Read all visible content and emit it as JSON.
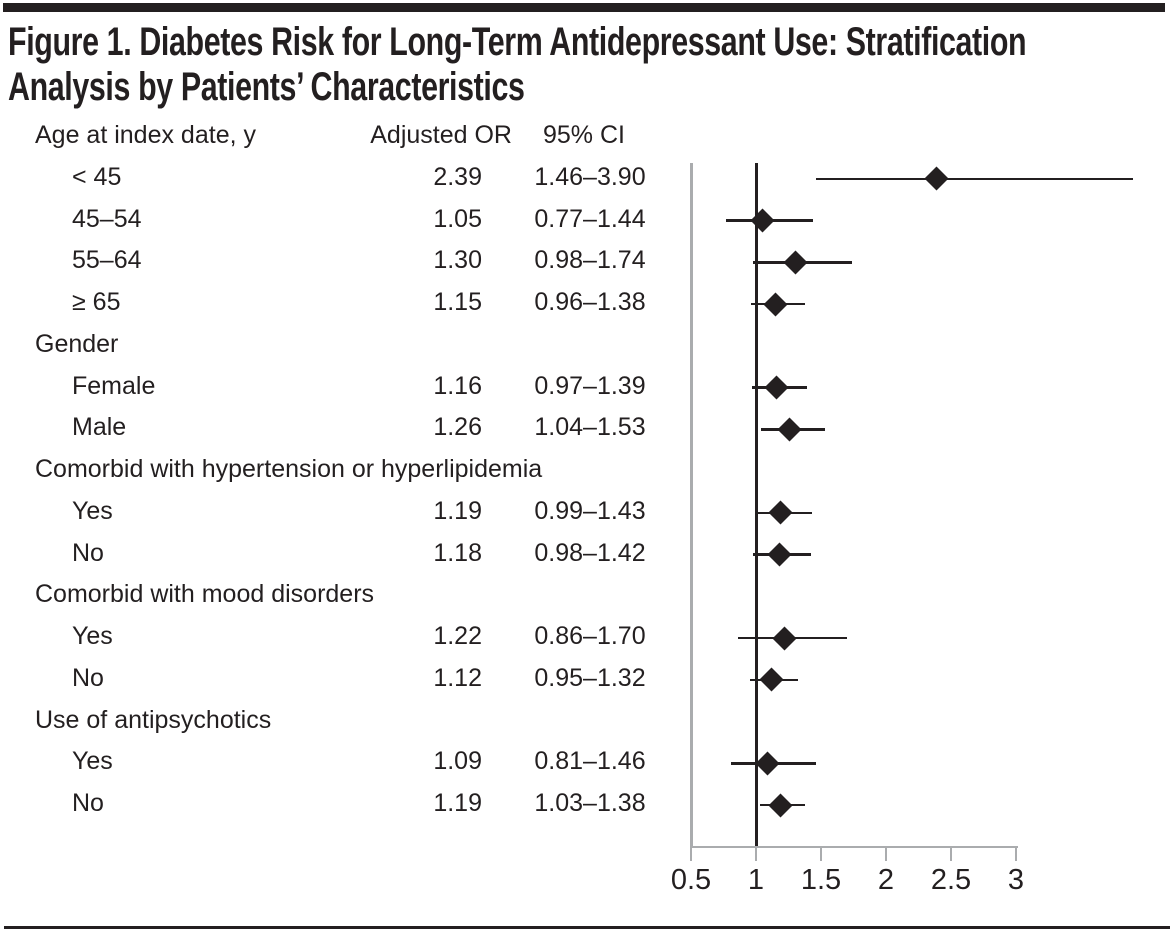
{
  "figure": {
    "title_line1": "Figure 1. Diabetes Risk for Long-Term Antidepressant Use: Stratification",
    "title_line2": "Analysis by Patients’ Characteristics"
  },
  "table": {
    "columns": {
      "label": "Age at index date, y",
      "or": "Adjusted OR",
      "ci": "95% CI"
    },
    "rows": [
      {
        "type": "item",
        "label": "< 45",
        "or": "2.39",
        "ci": "1.46–3.90",
        "est": 2.39,
        "lo": 1.46,
        "hi": 3.9
      },
      {
        "type": "item",
        "label": "45–54",
        "or": "1.05",
        "ci": "0.77–1.44",
        "est": 1.05,
        "lo": 0.77,
        "hi": 1.44
      },
      {
        "type": "item",
        "label": "55–64",
        "or": "1.30",
        "ci": "0.98–1.74",
        "est": 1.3,
        "lo": 0.98,
        "hi": 1.74
      },
      {
        "type": "item",
        "label": "≥ 65",
        "or": "1.15",
        "ci": "0.96–1.38",
        "est": 1.15,
        "lo": 0.96,
        "hi": 1.38
      },
      {
        "type": "group",
        "label": "Gender"
      },
      {
        "type": "item",
        "label": "Female",
        "or": "1.16",
        "ci": "0.97–1.39",
        "est": 1.16,
        "lo": 0.97,
        "hi": 1.39
      },
      {
        "type": "item",
        "label": "Male",
        "or": "1.26",
        "ci": "1.04–1.53",
        "est": 1.26,
        "lo": 1.04,
        "hi": 1.53
      },
      {
        "type": "group",
        "label": "Comorbid with hypertension or hyperlipidemia"
      },
      {
        "type": "item",
        "label": "Yes",
        "or": "1.19",
        "ci": "0.99–1.43",
        "est": 1.19,
        "lo": 0.99,
        "hi": 1.43
      },
      {
        "type": "item",
        "label": "No",
        "or": "1.18",
        "ci": "0.98–1.42",
        "est": 1.18,
        "lo": 0.98,
        "hi": 1.42
      },
      {
        "type": "group",
        "label": "Comorbid with mood disorders"
      },
      {
        "type": "item",
        "label": "Yes",
        "or": "1.22",
        "ci": "0.86–1.70",
        "est": 1.22,
        "lo": 0.86,
        "hi": 1.7
      },
      {
        "type": "item",
        "label": "No",
        "or": "1.12",
        "ci": "0.95–1.32",
        "est": 1.12,
        "lo": 0.95,
        "hi": 1.32
      },
      {
        "type": "group",
        "label": "Use of antipsychotics"
      },
      {
        "type": "item",
        "label": "Yes",
        "or": "1.09",
        "ci": "0.81–1.46",
        "est": 1.09,
        "lo": 0.81,
        "hi": 1.46
      },
      {
        "type": "item",
        "label": "No",
        "or": "1.19",
        "ci": "1.03–1.38",
        "est": 1.19,
        "lo": 1.03,
        "hi": 1.38
      }
    ]
  },
  "axis": {
    "tick_labels": [
      "0.5",
      "1",
      "1.5",
      "2",
      "2.5",
      "3"
    ],
    "tick_values": [
      0.5,
      1,
      1.5,
      2,
      2.5,
      3
    ],
    "reference_value": 1
  },
  "chart_data": {
    "type": "scatter",
    "subtype": "forest-plot",
    "title": "Figure 1. Diabetes Risk for Long-Term Antidepressant Use: Stratification Analysis by Patients’ Characteristics",
    "marker": "diamond",
    "x_axis": {
      "ticks": [
        0.5,
        1,
        1.5,
        2,
        2.5,
        3
      ],
      "reference_line": 1,
      "drawn_range": [
        0.5,
        3.9
      ],
      "grid": false
    },
    "columns": [
      "Adjusted OR",
      "95% CI"
    ],
    "groups": [
      {
        "group": "Age at index date, y",
        "items": [
          {
            "label": "< 45",
            "adjusted_or": 2.39,
            "ci_low": 1.46,
            "ci_high": 3.9
          },
          {
            "label": "45–54",
            "adjusted_or": 1.05,
            "ci_low": 0.77,
            "ci_high": 1.44
          },
          {
            "label": "55–64",
            "adjusted_or": 1.3,
            "ci_low": 0.98,
            "ci_high": 1.74
          },
          {
            "label": "≥ 65",
            "adjusted_or": 1.15,
            "ci_low": 0.96,
            "ci_high": 1.38
          }
        ]
      },
      {
        "group": "Gender",
        "items": [
          {
            "label": "Female",
            "adjusted_or": 1.16,
            "ci_low": 0.97,
            "ci_high": 1.39
          },
          {
            "label": "Male",
            "adjusted_or": 1.26,
            "ci_low": 1.04,
            "ci_high": 1.53
          }
        ]
      },
      {
        "group": "Comorbid with hypertension or hyperlipidemia",
        "items": [
          {
            "label": "Yes",
            "adjusted_or": 1.19,
            "ci_low": 0.99,
            "ci_high": 1.43
          },
          {
            "label": "No",
            "adjusted_or": 1.18,
            "ci_low": 0.98,
            "ci_high": 1.42
          }
        ]
      },
      {
        "group": "Comorbid with mood disorders",
        "items": [
          {
            "label": "Yes",
            "adjusted_or": 1.22,
            "ci_low": 0.86,
            "ci_high": 1.7
          },
          {
            "label": "No",
            "adjusted_or": 1.12,
            "ci_low": 0.95,
            "ci_high": 1.32
          }
        ]
      },
      {
        "group": "Use of antipsychotics",
        "items": [
          {
            "label": "Yes",
            "adjusted_or": 1.09,
            "ci_low": 0.81,
            "ci_high": 1.46
          },
          {
            "label": "No",
            "adjusted_or": 1.19,
            "ci_low": 1.03,
            "ci_high": 1.38
          }
        ]
      }
    ]
  }
}
